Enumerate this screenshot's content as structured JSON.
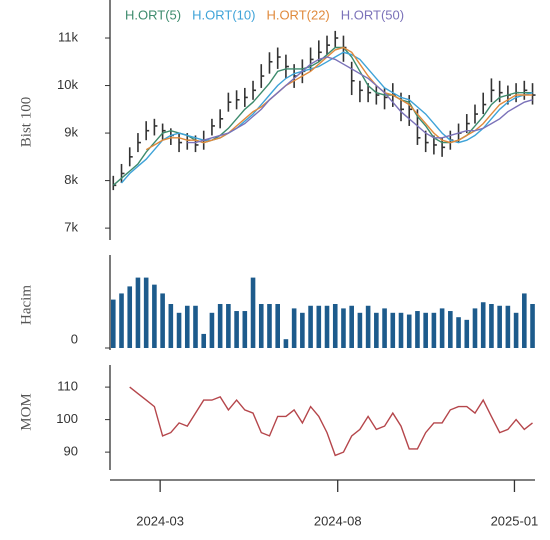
{
  "chart_data": [
    {
      "type": "candlestick",
      "ylabel": "Bist 100",
      "x": [
        0,
        1,
        2,
        3,
        4,
        5,
        6,
        7,
        8,
        9,
        10,
        11,
        12,
        13,
        14,
        15,
        16,
        17,
        18,
        19,
        20,
        21,
        22,
        23,
        24,
        25,
        26,
        27,
        28,
        29,
        30,
        31,
        32,
        33,
        34,
        35,
        36,
        37,
        38,
        39,
        40,
        41,
        42,
        43,
        44,
        45,
        46,
        47,
        48,
        49,
        50,
        51
      ],
      "high": [
        8100,
        8350,
        8700,
        9000,
        9250,
        9300,
        9200,
        9100,
        9000,
        9000,
        8950,
        9050,
        9300,
        9500,
        9850,
        9900,
        9950,
        10100,
        10450,
        10700,
        10800,
        10650,
        10450,
        10550,
        10800,
        10950,
        11050,
        11150,
        11050,
        10500,
        10100,
        10050,
        10000,
        9950,
        10050,
        9850,
        9800,
        9500,
        9050,
        8950,
        8900,
        9050,
        9200,
        9400,
        9600,
        9850,
        10150,
        10100,
        10000,
        10050,
        10100,
        10050
      ],
      "low": [
        7800,
        7950,
        8300,
        8600,
        8850,
        8950,
        8850,
        8750,
        8600,
        8650,
        8600,
        8650,
        8950,
        9100,
        9450,
        9500,
        9550,
        9700,
        9950,
        10250,
        10350,
        10150,
        9950,
        10050,
        10300,
        10500,
        10650,
        10800,
        10500,
        9800,
        9650,
        9650,
        9600,
        9500,
        9550,
        9250,
        9150,
        8750,
        8600,
        8550,
        8500,
        8650,
        8800,
        9000,
        9200,
        9400,
        9650,
        9650,
        9600,
        9650,
        9700,
        9600
      ],
      "close": [
        7900,
        8150,
        8500,
        8800,
        9050,
        9150,
        9050,
        8950,
        8800,
        8850,
        8750,
        8850,
        9150,
        9300,
        9650,
        9700,
        9750,
        9900,
        10200,
        10500,
        10600,
        10400,
        10200,
        10300,
        10550,
        10700,
        10850,
        11000,
        10800,
        10100,
        9900,
        9850,
        9800,
        9750,
        9800,
        9500,
        9500,
        8900,
        8800,
        8750,
        8700,
        8850,
        9000,
        9200,
        9400,
        9600,
        9900,
        9850,
        9800,
        9850,
        9900,
        9800
      ],
      "candle_color": "#333333",
      "series": [
        {
          "name": "H.ORT(5)",
          "color": "#3d8b6d",
          "values": [
            7900,
            8050,
            8200,
            8350,
            8600,
            8800,
            9000,
            9050,
            9000,
            8950,
            8850,
            8800,
            8850,
            8950,
            9100,
            9300,
            9500,
            9650,
            9850,
            10050,
            10300,
            10350,
            10350,
            10350,
            10400,
            10500,
            10650,
            10800,
            10800,
            10600,
            10300,
            10000,
            9850,
            9800,
            9800,
            9700,
            9650,
            9350,
            9150,
            8900,
            8800,
            8800,
            8850,
            8950,
            9150,
            9350,
            9600,
            9750,
            9800,
            9850,
            9850,
            9850
          ]
        },
        {
          "name": "H.ORT(10)",
          "color": "#3fa3d8",
          "values": [
            null,
            7950,
            8150,
            8300,
            8450,
            8650,
            8850,
            8950,
            9000,
            8950,
            8900,
            8850,
            8850,
            8900,
            9000,
            9100,
            9250,
            9400,
            9600,
            9800,
            10000,
            10150,
            10250,
            10300,
            10350,
            10400,
            10500,
            10600,
            10700,
            10650,
            10550,
            10350,
            10150,
            9950,
            9850,
            9750,
            9700,
            9550,
            9400,
            9200,
            9000,
            8850,
            8800,
            8850,
            8950,
            9100,
            9300,
            9500,
            9650,
            9750,
            9800,
            9850
          ]
        },
        {
          "name": "H.ORT(22)",
          "color": "#e08a3c",
          "values": [
            null,
            null,
            null,
            null,
            8650,
            8750,
            8850,
            8900,
            8900,
            8850,
            8850,
            8800,
            8850,
            8900,
            9000,
            9150,
            9300,
            9450,
            9550,
            9700,
            9850,
            10000,
            10100,
            10200,
            10300,
            10450,
            10600,
            10750,
            10800,
            10700,
            10450,
            10200,
            10000,
            9850,
            9800,
            9700,
            9600,
            9400,
            9200,
            9000,
            8850,
            8800,
            8850,
            8950,
            9050,
            9200,
            9400,
            9600,
            9700,
            9800,
            9800,
            9800
          ]
        },
        {
          "name": "H.ORT(50)",
          "color": "#7b72b9",
          "values": [
            null,
            null,
            null,
            null,
            null,
            null,
            null,
            null,
            null,
            8800,
            8800,
            8850,
            8900,
            8950,
            9000,
            9100,
            9200,
            9350,
            9500,
            9700,
            9850,
            10000,
            10150,
            10300,
            10450,
            10550,
            10600,
            10550,
            10450,
            10350,
            10250,
            10150,
            10000,
            9850,
            9650,
            9450,
            9300,
            9150,
            9000,
            8900,
            8900,
            8950,
            9000,
            9050,
            9050,
            9100,
            9200,
            9300,
            9450,
            9550,
            9650,
            9700
          ]
        }
      ],
      "ylim": [
        6750,
        11800
      ],
      "yticks": [
        {
          "value": 7000,
          "label": "7k"
        },
        {
          "value": 8000,
          "label": "8k"
        },
        {
          "value": 9000,
          "label": "9k"
        },
        {
          "value": 10000,
          "label": "10k"
        },
        {
          "value": 11000,
          "label": "11k"
        }
      ]
    },
    {
      "type": "bar",
      "ylabel": "Hacim",
      "color": "#1d5b8c",
      "values": [
        55,
        62,
        70,
        80,
        80,
        72,
        62,
        50,
        40,
        48,
        48,
        16,
        40,
        50,
        50,
        42,
        42,
        80,
        50,
        50,
        50,
        10,
        45,
        40,
        48,
        48,
        48,
        50,
        45,
        48,
        40,
        48,
        40,
        45,
        40,
        40,
        38,
        42,
        40,
        40,
        45,
        42,
        35,
        32,
        45,
        52,
        50,
        48,
        48,
        40,
        62,
        50
      ],
      "ylim": [
        0,
        100
      ],
      "yticks": [
        0
      ]
    },
    {
      "type": "line",
      "ylabel": "MOM",
      "series": [
        {
          "color": "#b5464b",
          "values": [
            null,
            null,
            110,
            108,
            106,
            104,
            95,
            96,
            99,
            98,
            102,
            106,
            106,
            107,
            103,
            106,
            103,
            102,
            96,
            95,
            101,
            101,
            103,
            99,
            104,
            101,
            96,
            89,
            90,
            95,
            97,
            101,
            97,
            98,
            102,
            98,
            91,
            91,
            96,
            99,
            99,
            103,
            104,
            104,
            102,
            106,
            101,
            96,
            97,
            100,
            97,
            99
          ]
        }
      ],
      "ylim": [
        84.5,
        116.8
      ],
      "yticks": [
        90,
        100,
        110
      ],
      "xlim": [
        -0.4,
        51.3
      ],
      "xticks": [
        {
          "value": 5.7,
          "label": "2024-03"
        },
        {
          "value": 27.3,
          "label": "2024-08"
        },
        {
          "value": 48.8,
          "label": "2025-01"
        }
      ]
    }
  ]
}
